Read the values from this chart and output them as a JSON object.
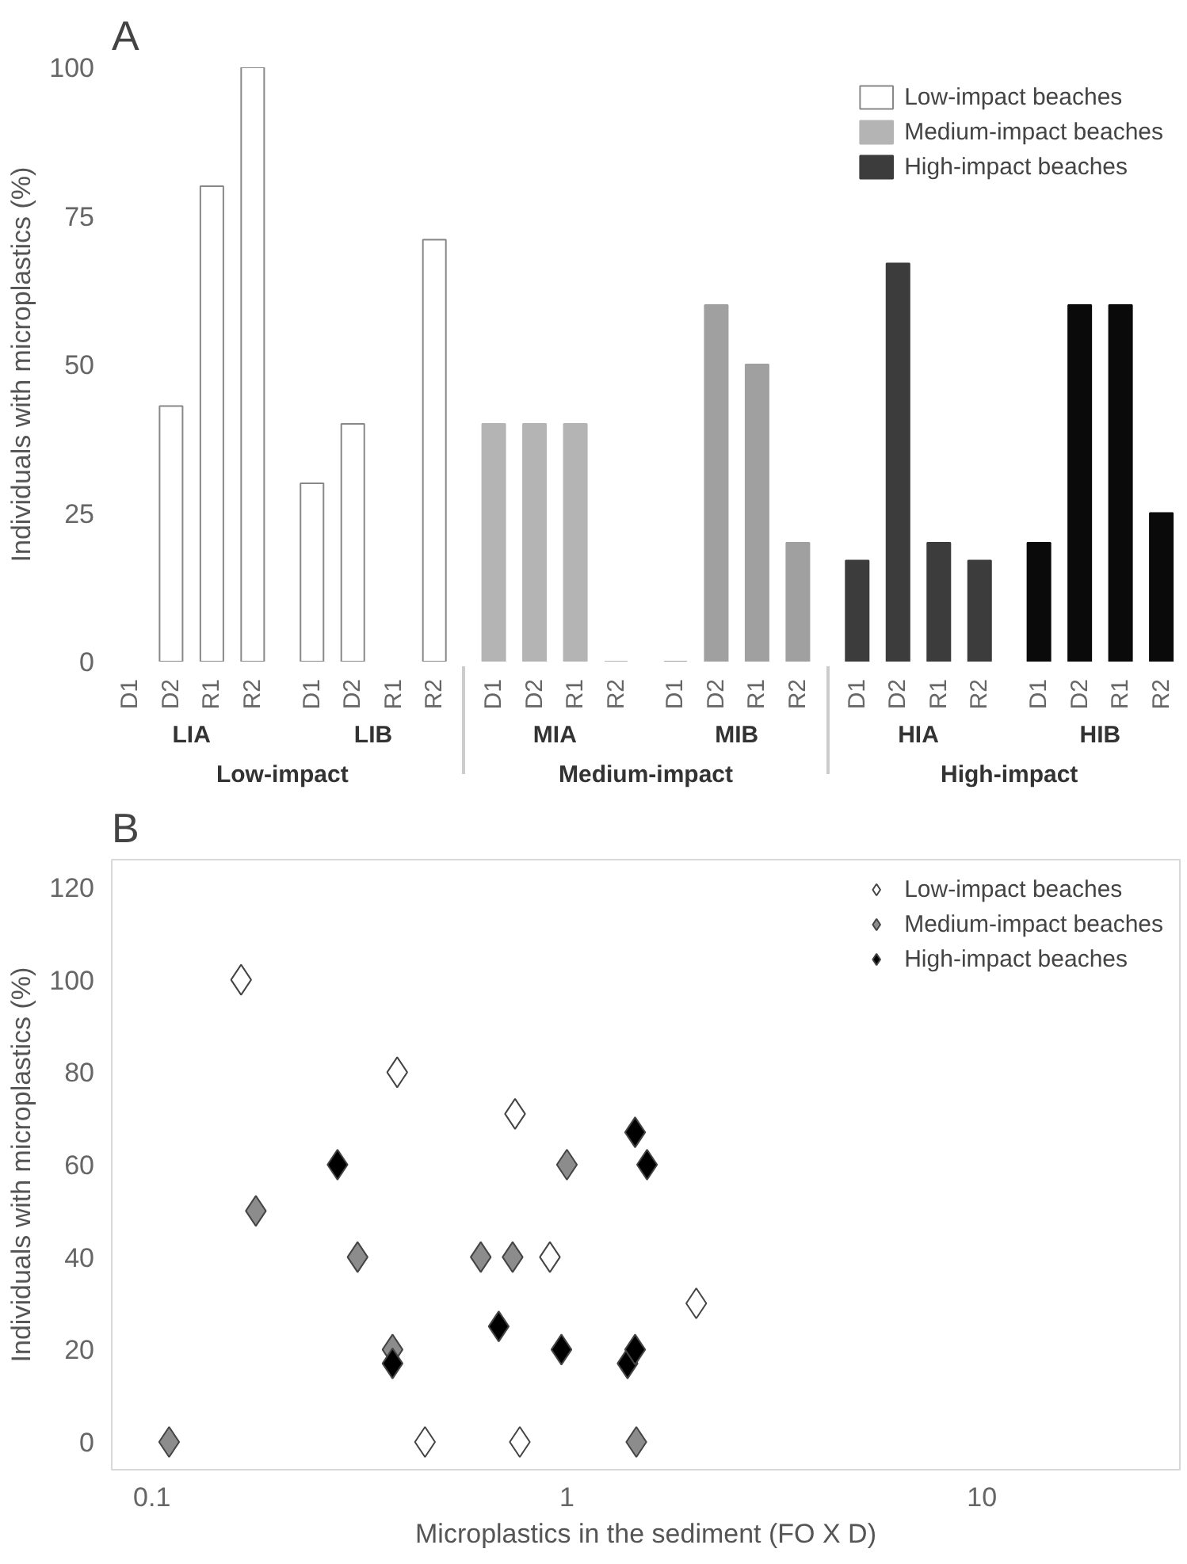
{
  "chart_data": [
    {
      "type": "bar",
      "title": "A",
      "ylabel": "Individuals with microplastics (%)",
      "categories": [
        "D1",
        "D2",
        "R1",
        "R2",
        "D1",
        "D2",
        "R1",
        "R2",
        "D1",
        "D2",
        "R1",
        "R2",
        "D1",
        "D2",
        "R1",
        "R2",
        "D1",
        "D2",
        "R1",
        "R2",
        "D1",
        "D2",
        "R1",
        "R2"
      ],
      "annotations": [
        "LIA",
        "LIB",
        "MIA",
        "MIB",
        "HIA",
        "HIB",
        "Low-impact",
        "Medium-impact",
        "High-impact"
      ],
      "series": [
        {
          "name": "Low-impact beaches",
          "colors": [
            "#ffffff",
            "#ffffff",
            "#ffffff",
            "#ffffff",
            "#ffffff",
            "#ffffff",
            "#ffffff",
            "#ffffff",
            null,
            null,
            null,
            null,
            null,
            null,
            null,
            null,
            null,
            null,
            null,
            null,
            null,
            null,
            null,
            null
          ],
          "values": [
            0,
            43,
            80,
            100,
            30,
            40,
            0,
            71,
            null,
            null,
            null,
            null,
            null,
            null,
            null,
            null,
            null,
            null,
            null,
            null,
            null,
            null,
            null,
            null
          ]
        },
        {
          "name": "Medium-impact beaches",
          "colors": [
            null,
            null,
            null,
            null,
            null,
            null,
            null,
            null,
            "#b4b4b4",
            "#b4b4b4",
            "#b4b4b4",
            "#b4b4b4",
            "#a0a0a0",
            "#a0a0a0",
            "#a0a0a0",
            "#a0a0a0",
            null,
            null,
            null,
            null,
            null,
            null,
            null,
            null
          ],
          "values": [
            null,
            null,
            null,
            null,
            null,
            null,
            null,
            null,
            40,
            40,
            40,
            0,
            0,
            60,
            50,
            20,
            null,
            null,
            null,
            null,
            null,
            null,
            null,
            null
          ]
        },
        {
          "name": "High-impact beaches",
          "colors": [
            null,
            null,
            null,
            null,
            null,
            null,
            null,
            null,
            null,
            null,
            null,
            null,
            null,
            null,
            null,
            null,
            "#3c3c3c",
            "#3c3c3c",
            "#3c3c3c",
            "#3c3c3c",
            "#0a0a0a",
            "#0a0a0a",
            "#0a0a0a",
            "#0a0a0a"
          ],
          "values": [
            null,
            null,
            null,
            null,
            null,
            null,
            null,
            null,
            null,
            null,
            null,
            null,
            null,
            null,
            null,
            null,
            17,
            67,
            20,
            17,
            20,
            60,
            60,
            25
          ]
        }
      ],
      "ylim": [
        0,
        100
      ],
      "yticks": [
        0,
        25,
        50,
        75,
        100
      ],
      "grid": false,
      "legend": "top right"
    },
    {
      "type": "scatter",
      "title": "B",
      "xlabel": "Microplastics in the sediment (FO X D)",
      "ylabel": "Individuals with microplastics (%)",
      "series": [
        {
          "name": "Low-impact beaches",
          "color": "#ffffff",
          "x": [
            0.164,
            0.39,
            0.75,
            0.91,
            2.05,
            0.455,
            0.77
          ],
          "values": [
            100,
            80,
            71,
            40,
            30,
            0,
            0
          ]
        },
        {
          "name": "Medium-impact beaches",
          "color": "#8c8c8c",
          "x": [
            0.11,
            0.178,
            0.313,
            0.38,
            0.62,
            0.74,
            1.0,
            1.47
          ],
          "values": [
            0,
            50,
            40,
            20,
            40,
            40,
            60,
            0
          ]
        },
        {
          "name": "High-impact beaches",
          "color": "#000000",
          "x": [
            0.28,
            0.38,
            0.685,
            0.97,
            1.46,
            1.56,
            1.4,
            1.46
          ],
          "values": [
            60,
            17,
            25,
            20,
            67,
            60,
            17,
            20
          ]
        }
      ],
      "log": "x",
      "xlim": [
        0.08,
        30
      ],
      "xticks": [
        0.1,
        1,
        10
      ],
      "ylim": [
        -6,
        126
      ],
      "yticks": [
        0,
        20,
        40,
        60,
        80,
        100,
        120
      ],
      "grid": false,
      "legend": "top right",
      "marker": "diamond"
    }
  ]
}
